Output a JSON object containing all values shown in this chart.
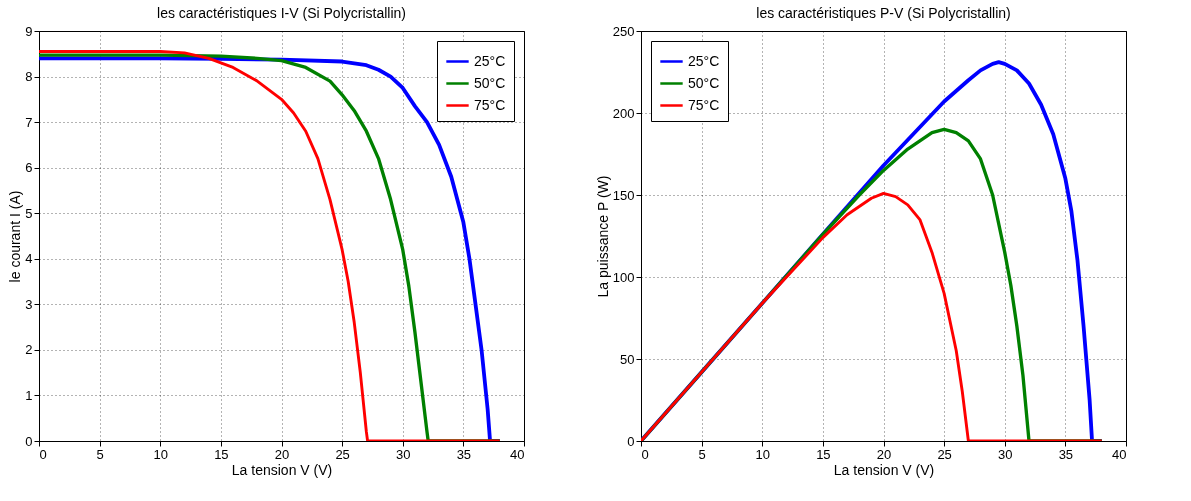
{
  "chart_data": [
    {
      "type": "line",
      "title": "les caractéristiques I-V (Si Polycristallin)",
      "xlabel": "La tension V (V)",
      "ylabel": "le courant I (A)",
      "xlim": [
        0,
        40
      ],
      "ylim": [
        0,
        9
      ],
      "xticks": [
        0,
        5,
        10,
        15,
        20,
        25,
        30,
        35,
        40
      ],
      "yticks": [
        0,
        1,
        2,
        3,
        4,
        5,
        6,
        7,
        8,
        9
      ],
      "grid": true,
      "legend": "top right",
      "series": [
        {
          "name": "25°C",
          "color": "#0000ff",
          "x": [
            0,
            10,
            15,
            20,
            25,
            27,
            28,
            29,
            30,
            31,
            32,
            33,
            34,
            35,
            35.5,
            36,
            36.5,
            37,
            37.2,
            38
          ],
          "values": [
            8.4,
            8.4,
            8.39,
            8.37,
            8.33,
            8.25,
            8.15,
            8.0,
            7.75,
            7.35,
            7.0,
            6.5,
            5.8,
            4.8,
            4.0,
            3.0,
            2.0,
            0.7,
            0,
            0
          ]
        },
        {
          "name": "50°C",
          "color": "#008000",
          "x": [
            0,
            10,
            15,
            18,
            20,
            22,
            24,
            25,
            26,
            27,
            28,
            29,
            30,
            30.5,
            31,
            31.5,
            32,
            32.1,
            38
          ],
          "values": [
            8.47,
            8.47,
            8.45,
            8.4,
            8.35,
            8.2,
            7.9,
            7.6,
            7.25,
            6.8,
            6.2,
            5.3,
            4.2,
            3.4,
            2.4,
            1.3,
            0.2,
            0,
            0
          ]
        },
        {
          "name": "75°C",
          "color": "#ff0000",
          "x": [
            0,
            10,
            12,
            14,
            16,
            18,
            20,
            21,
            22,
            23,
            24,
            25,
            25.5,
            26,
            26.5,
            27,
            27.1,
            38
          ],
          "values": [
            8.55,
            8.55,
            8.52,
            8.4,
            8.2,
            7.9,
            7.5,
            7.2,
            6.8,
            6.2,
            5.3,
            4.2,
            3.5,
            2.6,
            1.5,
            0.2,
            0,
            0
          ]
        }
      ]
    },
    {
      "type": "line",
      "title": "les caractéristiques P-V (Si Polycristallin)",
      "xlabel": "La tension V (V)",
      "ylabel": "La puissance P  (W)",
      "xlim": [
        0,
        40
      ],
      "ylim": [
        0,
        250
      ],
      "xticks": [
        0,
        5,
        10,
        15,
        20,
        25,
        30,
        35,
        40
      ],
      "yticks": [
        0,
        50,
        100,
        150,
        200,
        250
      ],
      "grid": true,
      "legend": "top left",
      "series": [
        {
          "name": "25°C",
          "color": "#0000ff",
          "x": [
            0,
            5,
            10,
            15,
            20,
            25,
            27,
            28,
            29,
            29.5,
            30,
            31,
            32,
            33,
            34,
            35,
            35.5,
            36,
            36.5,
            37,
            37.2,
            38
          ],
          "values": [
            0,
            42,
            84,
            126,
            168,
            207,
            220,
            226,
            230,
            231,
            230,
            226,
            218,
            205,
            187,
            160,
            140,
            110,
            70,
            25,
            0,
            0
          ]
        },
        {
          "name": "50°C",
          "color": "#008000",
          "x": [
            0,
            5,
            10,
            15,
            18,
            20,
            22,
            24,
            25,
            26,
            27,
            28,
            29,
            30,
            30.5,
            31,
            31.5,
            32,
            38
          ],
          "values": [
            0,
            42,
            84,
            126,
            150,
            165,
            178,
            188,
            190,
            188,
            183,
            172,
            150,
            115,
            95,
            70,
            40,
            0,
            0
          ]
        },
        {
          "name": "75°C",
          "color": "#ff0000",
          "x": [
            0,
            5,
            10,
            15,
            17,
            19,
            20,
            21,
            22,
            23,
            24,
            25,
            26,
            26.5,
            27,
            38
          ],
          "values": [
            0,
            42,
            84,
            124,
            138,
            148,
            151,
            149,
            144,
            135,
            115,
            90,
            55,
            30,
            0,
            0
          ]
        }
      ]
    }
  ]
}
